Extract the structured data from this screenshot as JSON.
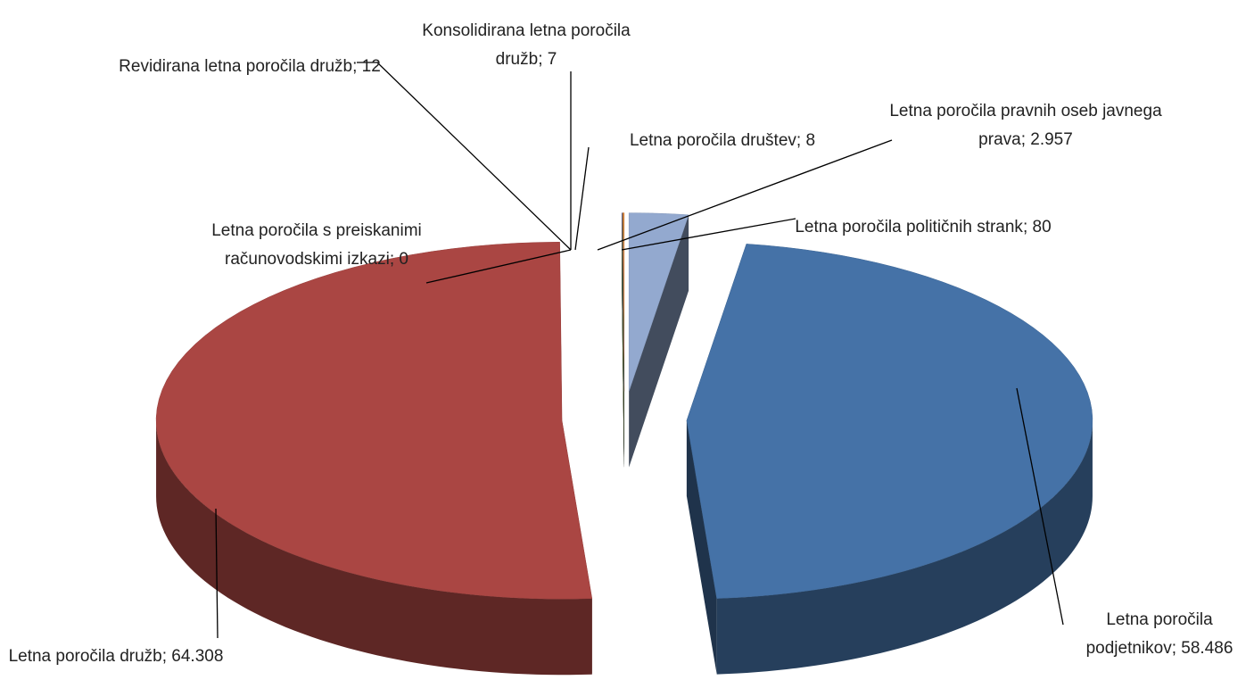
{
  "chart_data": {
    "type": "pie3d",
    "categories": [
      "Letna poročila pravnih oseb javnega prava",
      "Letna poročila podjetnikov",
      "Letna poročila družb",
      "Letna poročila s preiskanimi računovodskimi izkazi",
      "Revidirana letna poročila družb",
      "Konsolidirana letna poročila družb",
      "Letna poročila društev",
      "Letna poročila političnih strank"
    ],
    "values": [
      2957,
      58486,
      64308,
      0,
      12,
      7,
      8,
      80
    ],
    "value_labels": [
      "2.957",
      "58.486",
      "64.308",
      "0",
      "12",
      "7",
      "8",
      "80"
    ],
    "label_separator": "; ",
    "colors": [
      "#93a9cf",
      "#4572a7",
      "#aa4643",
      "#89a54e",
      "#71588f",
      "#4198af",
      "#3d5a1f",
      "#db843d"
    ]
  }
}
